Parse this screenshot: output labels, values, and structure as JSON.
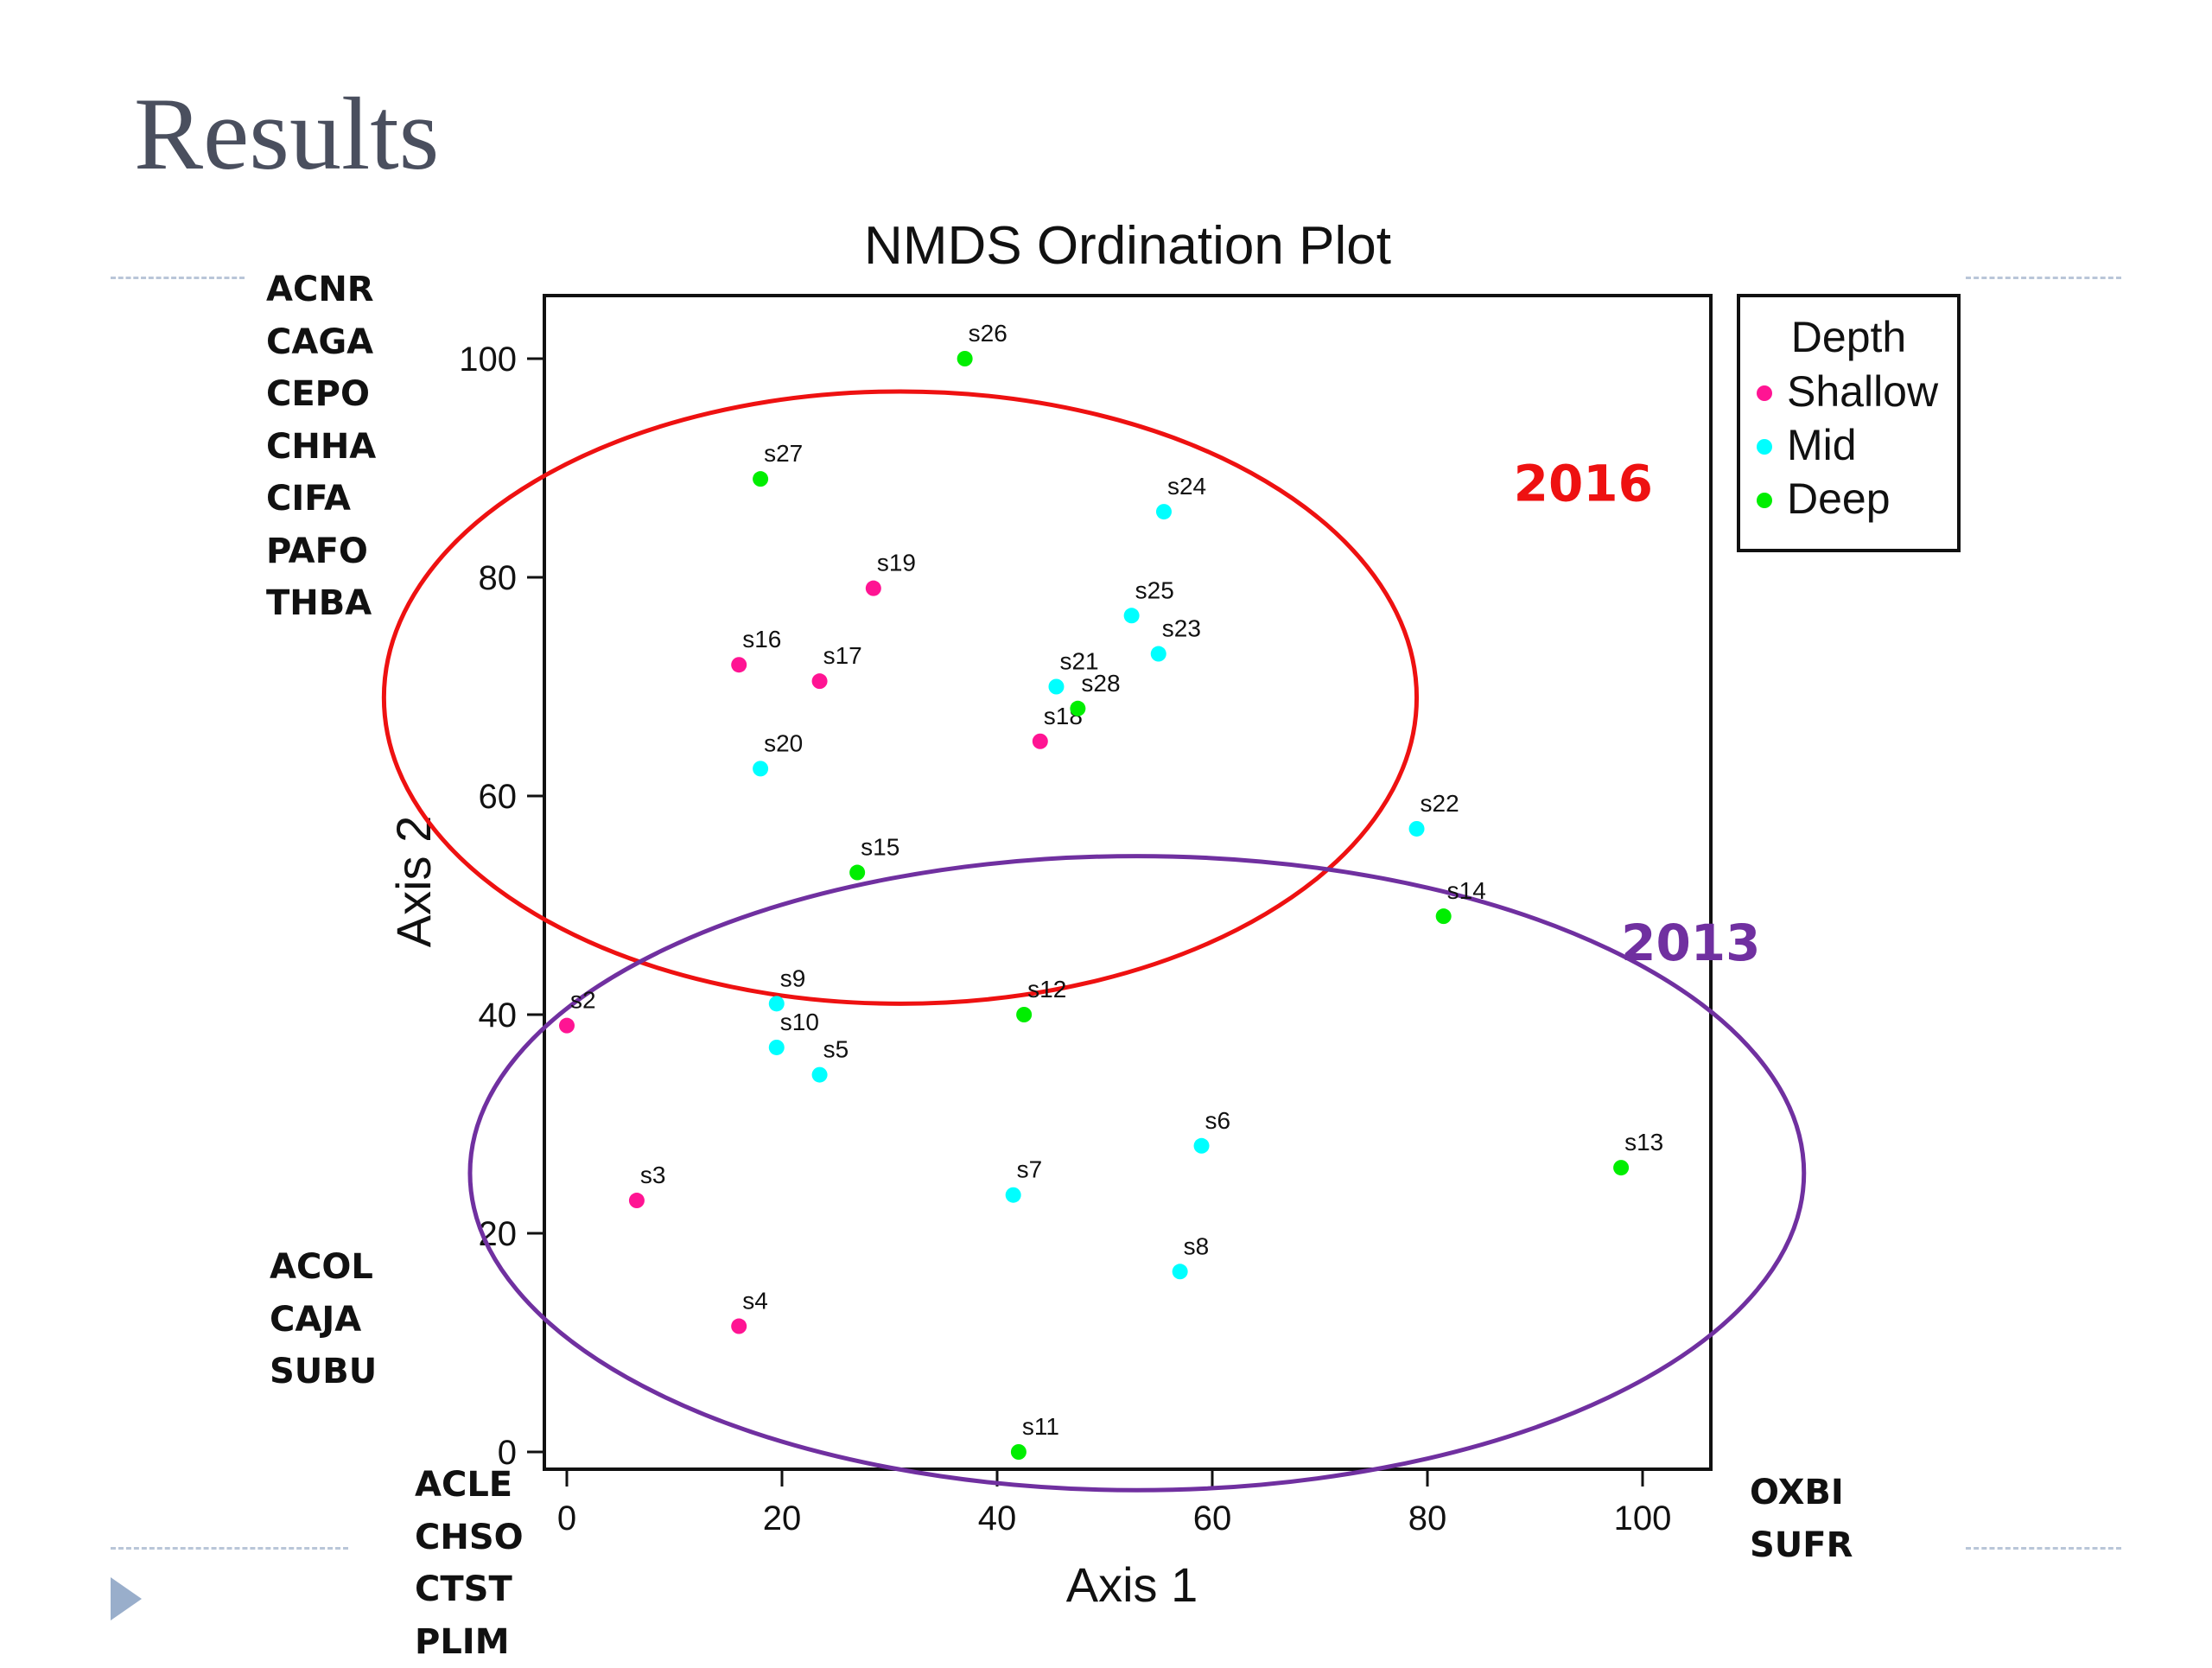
{
  "slide": {
    "title": "Results",
    "accent_color": "#99aecb"
  },
  "species_groups": {
    "top_left": [
      "ACNR",
      "CAGA",
      "CEPO",
      "CHHA",
      "CIFA",
      "PAFO",
      "THBA"
    ],
    "bottom_left": [
      "ACOL",
      "CAJA",
      "SUBU"
    ],
    "bottom_center": [
      "ACLE",
      "CHSO",
      "CTST",
      "PLIM"
    ],
    "bottom_right": [
      "OXBI",
      "SUFR"
    ]
  },
  "chart_data": {
    "type": "scatter",
    "title": "NMDS Ordination Plot",
    "xlabel": "Axis 1",
    "ylabel": "Axis 2",
    "xlim": [
      -2,
      106
    ],
    "ylim": [
      -2,
      106
    ],
    "xticks": [
      0,
      20,
      40,
      60,
      80,
      100
    ],
    "yticks": [
      0,
      20,
      40,
      60,
      80,
      100
    ],
    "grid": false,
    "legend": {
      "title": "Depth",
      "position": "top-right-outside",
      "entries": [
        {
          "label": "Shallow",
          "color": "#ff1493"
        },
        {
          "label": "Mid",
          "color": "#00ffff"
        },
        {
          "label": "Deep",
          "color": "#00ee00"
        }
      ]
    },
    "series": [
      {
        "name": "Shallow",
        "color": "#ff1493",
        "points": [
          {
            "label": "s2",
            "x": 0,
            "y": 39
          },
          {
            "label": "s3",
            "x": 6.5,
            "y": 23
          },
          {
            "label": "s4",
            "x": 16,
            "y": 11.5
          },
          {
            "label": "s16",
            "x": 16,
            "y": 72
          },
          {
            "label": "s17",
            "x": 23.5,
            "y": 70.5
          },
          {
            "label": "s19",
            "x": 28.5,
            "y": 79
          },
          {
            "label": "s18",
            "x": 44,
            "y": 65
          }
        ]
      },
      {
        "name": "Mid",
        "color": "#00ffff",
        "points": [
          {
            "label": "s9",
            "x": 19.5,
            "y": 41
          },
          {
            "label": "s10",
            "x": 19.5,
            "y": 37
          },
          {
            "label": "s5",
            "x": 23.5,
            "y": 34.5
          },
          {
            "label": "s20",
            "x": 18,
            "y": 62.5
          },
          {
            "label": "s7",
            "x": 41.5,
            "y": 23.5
          },
          {
            "label": "s6",
            "x": 59,
            "y": 28
          },
          {
            "label": "s8",
            "x": 57,
            "y": 16.5
          },
          {
            "label": "s21",
            "x": 45.5,
            "y": 70
          },
          {
            "label": "s25",
            "x": 52.5,
            "y": 76.5
          },
          {
            "label": "s23",
            "x": 55,
            "y": 73
          },
          {
            "label": "s24",
            "x": 55.5,
            "y": 86
          },
          {
            "label": "s22",
            "x": 79,
            "y": 57
          }
        ]
      },
      {
        "name": "Deep",
        "color": "#00ee00",
        "points": [
          {
            "label": "s11",
            "x": 42,
            "y": 0
          },
          {
            "label": "s12",
            "x": 42.5,
            "y": 40
          },
          {
            "label": "s13",
            "x": 98,
            "y": 26
          },
          {
            "label": "s14",
            "x": 81.5,
            "y": 49
          },
          {
            "label": "s15",
            "x": 27,
            "y": 53
          },
          {
            "label": "s26",
            "x": 37,
            "y": 100
          },
          {
            "label": "s27",
            "x": 18,
            "y": 89
          },
          {
            "label": "s28",
            "x": 47.5,
            "y": 68
          }
        ]
      }
    ],
    "annotations": [
      {
        "text": "2016",
        "color": "#ee1111",
        "ellipse": {
          "cx": 31,
          "cy": 69,
          "rx": 48,
          "ry": 28
        },
        "label_at": {
          "x": 88,
          "y": 87
        }
      },
      {
        "text": "2013",
        "color": "#7030a0",
        "ellipse": {
          "cx": 53,
          "cy": 25.5,
          "rx": 62,
          "ry": 29
        },
        "label_at": {
          "x": 98,
          "y": 45
        }
      }
    ]
  }
}
